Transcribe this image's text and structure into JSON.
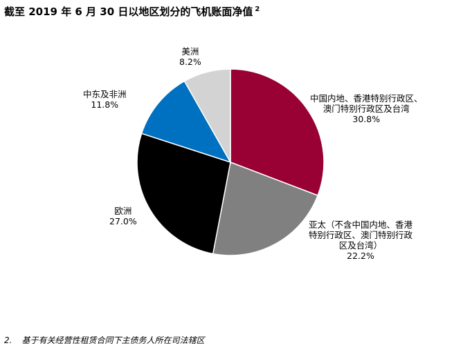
{
  "title": "截至 2019 年 6 月 30 日以地区划分的飞机账面净值",
  "title_footnote_ref": "2",
  "chart_data": {
    "type": "pie",
    "title": "截至 2019 年 6 月 30 日以地区划分的飞机账面净值",
    "slices": [
      {
        "label_lines": [
          "中国内地、香港特别行政区、",
          "澳门特别行政区及台湾"
        ],
        "value": 30.8,
        "value_text": "30.8%",
        "color": "#990033"
      },
      {
        "label_lines": [
          "亚太（不含中国内地、香港",
          "特别行政区、澳门特别行政",
          "区及台湾）"
        ],
        "value": 22.2,
        "value_text": "22.2%",
        "color": "#808080"
      },
      {
        "label_lines": [
          "欧洲"
        ],
        "value": 27.0,
        "value_text": "27.0%",
        "color": "#000000"
      },
      {
        "label_lines": [
          "中东及非洲"
        ],
        "value": 11.8,
        "value_text": "11.8%",
        "color": "#0070C0"
      },
      {
        "label_lines": [
          "美洲"
        ],
        "value": 8.2,
        "value_text": "8.2%",
        "color": "#D3D3D3"
      }
    ],
    "start_angle_deg": 0,
    "direction": "clockwise",
    "slice_border_color": "#ffffff"
  },
  "footnote": {
    "number": "2.",
    "text": "基于有关经营性租赁合同下主债务人所在司法辖区"
  }
}
